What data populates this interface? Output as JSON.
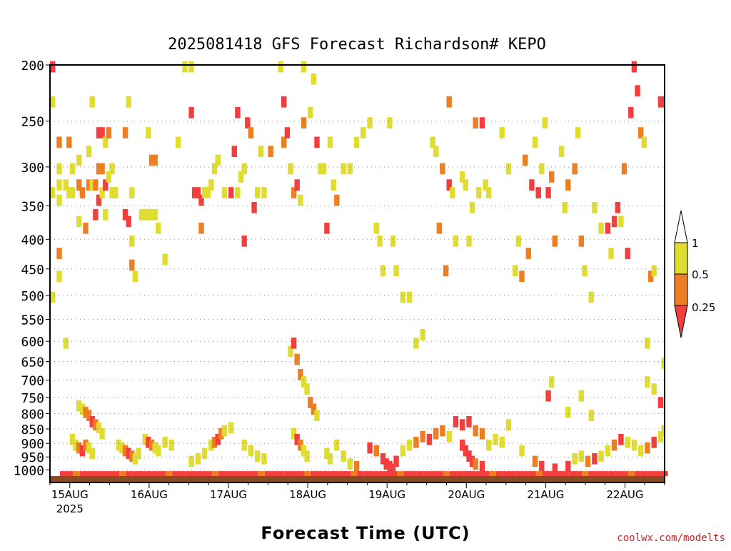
{
  "chart_data": {
    "type": "heatmap",
    "title": "2025081418 GFS Forecast Richardson# KEPO",
    "xlabel": "Forecast Time (UTC)",
    "ylabel": "",
    "y_scale": "log-pressure (inverted)",
    "ylim": [
      1025,
      200
    ],
    "y_ticks": [
      200,
      250,
      300,
      350,
      400,
      450,
      500,
      550,
      600,
      650,
      700,
      750,
      800,
      850,
      900,
      950,
      1000
    ],
    "x_ticks": [
      {
        "label": "15AUG",
        "sublabel": "2025",
        "hour": 6
      },
      {
        "label": "16AUG",
        "sublabel": "",
        "hour": 30
      },
      {
        "label": "17AUG",
        "sublabel": "",
        "hour": 54
      },
      {
        "label": "18AUG",
        "sublabel": "",
        "hour": 78
      },
      {
        "label": "19AUG",
        "sublabel": "",
        "hour": 102
      },
      {
        "label": "20AUG",
        "sublabel": "",
        "hour": 126
      },
      {
        "label": "21AUG",
        "sublabel": "",
        "hour": 150
      },
      {
        "label": "22AUG",
        "sublabel": "",
        "hour": 174
      }
    ],
    "xlim": [
      0,
      186
    ],
    "grid": true,
    "colorbar": {
      "labels": [
        "1",
        "0.5",
        "0.25"
      ],
      "bins": [
        {
          "range": "0.5-1",
          "color": "#e0dc30"
        },
        {
          "range": "0.25-0.5",
          "color": "#ee7e22"
        },
        {
          "range": "<0.25",
          "color": "#f43e3e"
        }
      ]
    },
    "cells": [
      [
        0,
        200,
        0.1
      ],
      [
        0,
        230,
        1
      ],
      [
        0,
        330,
        0.7
      ],
      [
        0,
        500,
        0.8
      ],
      [
        2,
        270,
        0.4
      ],
      [
        2,
        300,
        0.6
      ],
      [
        2,
        320,
        0.7
      ],
      [
        2,
        340,
        0.9
      ],
      [
        2,
        420,
        0.4
      ],
      [
        2,
        460,
        0.8
      ],
      [
        4,
        320,
        0.8
      ],
      [
        4,
        600,
        0.9
      ],
      [
        5,
        270,
        0.3
      ],
      [
        5,
        330,
        0.6
      ],
      [
        6,
        300,
        0.8
      ],
      [
        6,
        330,
        0.7
      ],
      [
        8,
        290,
        0.6
      ],
      [
        8,
        320,
        0.3
      ],
      [
        8,
        370,
        0.7
      ],
      [
        9,
        330,
        0.4
      ],
      [
        10,
        380,
        0.4
      ],
      [
        11,
        280,
        0.8
      ],
      [
        11,
        320,
        0.3
      ],
      [
        12,
        230,
        0.7
      ],
      [
        12,
        320,
        0.8
      ],
      [
        13,
        320,
        0.4
      ],
      [
        13,
        360,
        0.2
      ],
      [
        14,
        260,
        0.2
      ],
      [
        14,
        300,
        0.4
      ],
      [
        14,
        340,
        0.2
      ],
      [
        15,
        260,
        0.2
      ],
      [
        15,
        300,
        0.3
      ],
      [
        15,
        330,
        0.8
      ],
      [
        16,
        270,
        0.8
      ],
      [
        16,
        320,
        0.1
      ],
      [
        16,
        360,
        0.7
      ],
      [
        17,
        260,
        0.4
      ],
      [
        17,
        310,
        0.6
      ],
      [
        18,
        300,
        0.7
      ],
      [
        18,
        330,
        0.8
      ],
      [
        19,
        330,
        0.8
      ],
      [
        22,
        260,
        0.4
      ],
      [
        22,
        360,
        0.2
      ],
      [
        23,
        370,
        0.2
      ],
      [
        23,
        230,
        0.5
      ],
      [
        24,
        330,
        0.7
      ],
      [
        24,
        400,
        0.7
      ],
      [
        24,
        440,
        0.3
      ],
      [
        25,
        460,
        0.8
      ],
      [
        27,
        360,
        0.9
      ],
      [
        28,
        360,
        0.9
      ],
      [
        29,
        260,
        0.7
      ],
      [
        29,
        360,
        0.8
      ],
      [
        30,
        290,
        0.3
      ],
      [
        30,
        360,
        0.9
      ],
      [
        31,
        290,
        0.4
      ],
      [
        31,
        360,
        0.8
      ],
      [
        32,
        380,
        0.7
      ],
      [
        34,
        430,
        0.7
      ],
      [
        38,
        270,
        0.7
      ],
      [
        40,
        200,
        0.9
      ],
      [
        42,
        200,
        0.6
      ],
      [
        42,
        240,
        0.2
      ],
      [
        43,
        330,
        0.2
      ],
      [
        44,
        330,
        0.1
      ],
      [
        45,
        340,
        0.2
      ],
      [
        45,
        380,
        0.3
      ],
      [
        46,
        330,
        0.6
      ],
      [
        47,
        330,
        0.7
      ],
      [
        48,
        320,
        0.7
      ],
      [
        49,
        300,
        0.6
      ],
      [
        50,
        290,
        0.6
      ],
      [
        52,
        330,
        0.8
      ],
      [
        54,
        330,
        0.2
      ],
      [
        55,
        280,
        0.2
      ],
      [
        56,
        240,
        0.2
      ],
      [
        56,
        330,
        0.9
      ],
      [
        57,
        310,
        0.8
      ],
      [
        58,
        300,
        0.7
      ],
      [
        58,
        400,
        0.2
      ],
      [
        59,
        250,
        0.2
      ],
      [
        60,
        260,
        0.3
      ],
      [
        61,
        350,
        0.2
      ],
      [
        62,
        330,
        0.9
      ],
      [
        63,
        280,
        0.6
      ],
      [
        64,
        330,
        0.7
      ],
      [
        66,
        280,
        0.3
      ],
      [
        69,
        200,
        0.5
      ],
      [
        70,
        230,
        0.1
      ],
      [
        70,
        270,
        0.3
      ],
      [
        71,
        260,
        0.2
      ],
      [
        72,
        300,
        0.8
      ],
      [
        73,
        330,
        0.4
      ],
      [
        74,
        320,
        0.1
      ],
      [
        75,
        340,
        0.6
      ],
      [
        76,
        200,
        0.6
      ],
      [
        76,
        250,
        0.3
      ],
      [
        78,
        240,
        0.8
      ],
      [
        79,
        210,
        0.5
      ],
      [
        80,
        270,
        0.2
      ],
      [
        81,
        300,
        0.8
      ],
      [
        82,
        300,
        0.7
      ],
      [
        83,
        380,
        0.1
      ],
      [
        84,
        270,
        0.7
      ],
      [
        85,
        320,
        0.9
      ],
      [
        86,
        340,
        0.3
      ],
      [
        88,
        300,
        0.7
      ],
      [
        90,
        300,
        0.6
      ],
      [
        92,
        270,
        0.8
      ],
      [
        94,
        260,
        0.7
      ],
      [
        96,
        250,
        0.9
      ],
      [
        98,
        380,
        0.7
      ],
      [
        99,
        400,
        0.8
      ],
      [
        100,
        450,
        0.7
      ],
      [
        102,
        250,
        0.8
      ],
      [
        103,
        400,
        0.6
      ],
      [
        104,
        450,
        0.7
      ],
      [
        106,
        500,
        0.8
      ],
      [
        108,
        500,
        0.8
      ],
      [
        110,
        600,
        0.9
      ],
      [
        112,
        580,
        0.9
      ],
      [
        115,
        270,
        0.8
      ],
      [
        116,
        280,
        0.7
      ],
      [
        117,
        380,
        0.4
      ],
      [
        118,
        300,
        0.4
      ],
      [
        119,
        450,
        0.4
      ],
      [
        120,
        230,
        0.3
      ],
      [
        120,
        320,
        0.2
      ],
      [
        121,
        330,
        0.8
      ],
      [
        122,
        400,
        0.6
      ],
      [
        124,
        310,
        0.6
      ],
      [
        125,
        320,
        0.8
      ],
      [
        126,
        400,
        0.9
      ],
      [
        127,
        350,
        0.8
      ],
      [
        128,
        250,
        0.3
      ],
      [
        129,
        330,
        0.7
      ],
      [
        130,
        250,
        0.2
      ],
      [
        131,
        320,
        0.7
      ],
      [
        132,
        330,
        0.5
      ],
      [
        136,
        260,
        0.9
      ],
      [
        138,
        300,
        0.8
      ],
      [
        140,
        450,
        0.9
      ],
      [
        141,
        400,
        0.9
      ],
      [
        142,
        460,
        0.4
      ],
      [
        143,
        290,
        0.3
      ],
      [
        144,
        420,
        0.4
      ],
      [
        145,
        320,
        0.1
      ],
      [
        146,
        270,
        0.8
      ],
      [
        147,
        330,
        0.1
      ],
      [
        148,
        300,
        0.6
      ],
      [
        149,
        250,
        0.6
      ],
      [
        150,
        330,
        0.2
      ],
      [
        151,
        310,
        0.3
      ],
      [
        152,
        400,
        0.4
      ],
      [
        154,
        280,
        0.6
      ],
      [
        155,
        350,
        0.9
      ],
      [
        156,
        320,
        0.3
      ],
      [
        158,
        300,
        0.4
      ],
      [
        159,
        260,
        0.8
      ],
      [
        160,
        400,
        0.3
      ],
      [
        161,
        450,
        0.7
      ],
      [
        163,
        500,
        0.9
      ],
      [
        164,
        350,
        0.8
      ],
      [
        166,
        380,
        0.8
      ],
      [
        168,
        380,
        0.1
      ],
      [
        169,
        420,
        0.7
      ],
      [
        170,
        370,
        0.2
      ],
      [
        171,
        350,
        0.1
      ],
      [
        172,
        370,
        0.8
      ],
      [
        173,
        300,
        0.3
      ],
      [
        174,
        420,
        0.2
      ],
      [
        175,
        240,
        0.2
      ],
      [
        176,
        200,
        0.1
      ],
      [
        177,
        220,
        0.2
      ],
      [
        178,
        260,
        0.3
      ],
      [
        179,
        270,
        0.7
      ],
      [
        180,
        600,
        0.8
      ],
      [
        181,
        460,
        0.4
      ],
      [
        182,
        450,
        0.7
      ],
      [
        184,
        230,
        0.1
      ],
      [
        185,
        230,
        0.1
      ],
      [
        8,
        770,
        0.6
      ],
      [
        9,
        780,
        0.7
      ],
      [
        10,
        790,
        0.4
      ],
      [
        11,
        800,
        0.4
      ],
      [
        12,
        820,
        0.2
      ],
      [
        13,
        830,
        0.4
      ],
      [
        14,
        840,
        0.6
      ],
      [
        15,
        860,
        0.8
      ],
      [
        6,
        880,
        0.8
      ],
      [
        7,
        900,
        0.5
      ],
      [
        8,
        910,
        0.3
      ],
      [
        9,
        920,
        0.2
      ],
      [
        10,
        900,
        0.3
      ],
      [
        11,
        910,
        0.7
      ],
      [
        12,
        930,
        0.9
      ],
      [
        20,
        900,
        0.8
      ],
      [
        21,
        910,
        0.5
      ],
      [
        22,
        920,
        0.3
      ],
      [
        23,
        930,
        0.2
      ],
      [
        24,
        940,
        0.4
      ],
      [
        25,
        950,
        0.7
      ],
      [
        26,
        930,
        0.9
      ],
      [
        28,
        880,
        0.6
      ],
      [
        29,
        890,
        0.2
      ],
      [
        30,
        900,
        0.3
      ],
      [
        31,
        910,
        0.7
      ],
      [
        32,
        920,
        0.8
      ],
      [
        34,
        890,
        0.7
      ],
      [
        36,
        900,
        0.6
      ],
      [
        42,
        960,
        0.8
      ],
      [
        44,
        950,
        0.7
      ],
      [
        46,
        930,
        0.6
      ],
      [
        48,
        900,
        0.5
      ],
      [
        49,
        890,
        0.3
      ],
      [
        50,
        880,
        0.2
      ],
      [
        51,
        860,
        0.4
      ],
      [
        52,
        850,
        0.7
      ],
      [
        54,
        840,
        0.9
      ],
      [
        58,
        900,
        0.7
      ],
      [
        60,
        920,
        0.6
      ],
      [
        62,
        940,
        0.8
      ],
      [
        64,
        950,
        0.9
      ],
      [
        72,
        620,
        0.8
      ],
      [
        73,
        600,
        0.2
      ],
      [
        74,
        640,
        0.3
      ],
      [
        75,
        680,
        0.4
      ],
      [
        76,
        700,
        0.6
      ],
      [
        77,
        720,
        0.8
      ],
      [
        78,
        760,
        0.3
      ],
      [
        79,
        780,
        0.4
      ],
      [
        80,
        800,
        0.7
      ],
      [
        73,
        860,
        0.8
      ],
      [
        74,
        880,
        0.2
      ],
      [
        75,
        900,
        0.4
      ],
      [
        76,
        920,
        0.7
      ],
      [
        77,
        940,
        0.8
      ],
      [
        83,
        930,
        0.6
      ],
      [
        84,
        950,
        0.8
      ],
      [
        86,
        900,
        0.7
      ],
      [
        88,
        940,
        0.9
      ],
      [
        90,
        970,
        0.6
      ],
      [
        92,
        980,
        0.3
      ],
      [
        96,
        910,
        0.2
      ],
      [
        98,
        920,
        0.3
      ],
      [
        100,
        950,
        0.1
      ],
      [
        101,
        970,
        0.2
      ],
      [
        102,
        980,
        0.1
      ],
      [
        103,
        990,
        0.1
      ],
      [
        104,
        960,
        0.1
      ],
      [
        106,
        920,
        0.7
      ],
      [
        108,
        900,
        0.8
      ],
      [
        110,
        890,
        0.3
      ],
      [
        112,
        870,
        0.4
      ],
      [
        114,
        880,
        0.2
      ],
      [
        116,
        860,
        0.4
      ],
      [
        118,
        850,
        0.3
      ],
      [
        120,
        870,
        0.8
      ],
      [
        122,
        820,
        0.1
      ],
      [
        124,
        830,
        0.2
      ],
      [
        126,
        820,
        0.1
      ],
      [
        128,
        850,
        0.4
      ],
      [
        130,
        860,
        0.3
      ],
      [
        132,
        900,
        0.6
      ],
      [
        134,
        880,
        0.7
      ],
      [
        136,
        890,
        0.8
      ],
      [
        138,
        830,
        0.8
      ],
      [
        124,
        900,
        0.2
      ],
      [
        125,
        920,
        0.1
      ],
      [
        126,
        940,
        0.2
      ],
      [
        127,
        960,
        0.2
      ],
      [
        128,
        970,
        0.3
      ],
      [
        130,
        980,
        0.2
      ],
      [
        142,
        920,
        0.9
      ],
      [
        146,
        960,
        0.3
      ],
      [
        148,
        980,
        0.2
      ],
      [
        152,
        990,
        0.1
      ],
      [
        156,
        980,
        0.2
      ],
      [
        158,
        950,
        0.6
      ],
      [
        160,
        940,
        0.9
      ],
      [
        162,
        960,
        0.3
      ],
      [
        164,
        950,
        0.2
      ],
      [
        166,
        940,
        0.7
      ],
      [
        168,
        920,
        0.6
      ],
      [
        170,
        900,
        0.4
      ],
      [
        172,
        880,
        0.2
      ],
      [
        174,
        890,
        0.5
      ],
      [
        176,
        900,
        0.7
      ],
      [
        178,
        920,
        0.6
      ],
      [
        180,
        910,
        0.3
      ],
      [
        182,
        890,
        0.2
      ],
      [
        184,
        870,
        0.5
      ],
      [
        185,
        850,
        0.7
      ],
      [
        150,
        740,
        0.2
      ],
      [
        151,
        700,
        0.8
      ],
      [
        156,
        790,
        0.8
      ],
      [
        160,
        740,
        0.9
      ],
      [
        163,
        800,
        0.8
      ],
      [
        180,
        700,
        0.8
      ],
      [
        182,
        720,
        0.9
      ],
      [
        184,
        760,
        0.2
      ],
      [
        185,
        650,
        0.8
      ]
    ]
  }
}
